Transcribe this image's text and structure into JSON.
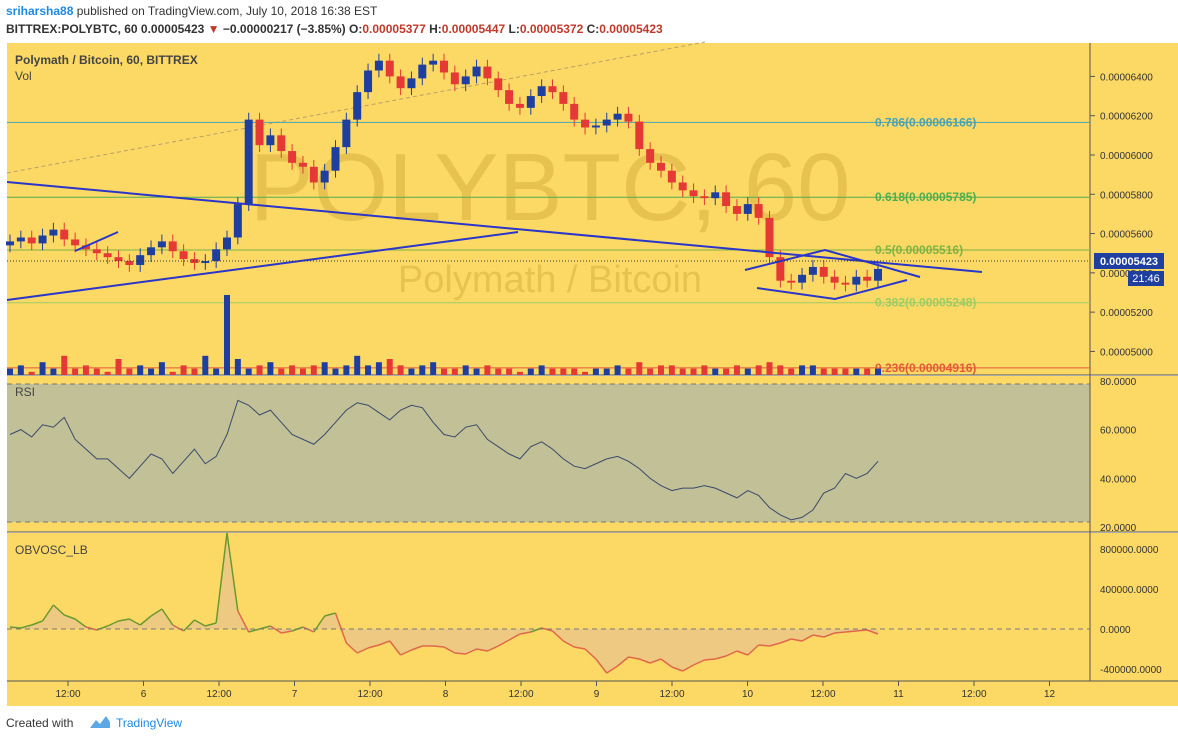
{
  "header": {
    "author": "sriharsha88",
    "published_text": "published on TradingView.com, July 10, 2018 16:38 EST",
    "symbol": "BITTREX:POLYBTC, 60",
    "last": "0.00005423",
    "change_arrow": "▼",
    "change": "−0.00000217 (−3.85%)",
    "o_label": "O:",
    "o_value": "0.00005377",
    "h_label": "H:",
    "h_value": "0.00005447",
    "l_label": "L:",
    "l_value": "0.00005372",
    "c_label": "C:",
    "c_value": "0.00005423"
  },
  "main_pane": {
    "legend_title": "Polymath / Bitcoin, 60, BITTREX",
    "legend_vol": "Vol",
    "watermark_big": "POLYBTC, 60",
    "watermark_small": "Polymath / Bitcoin",
    "price_label": "0.00005423",
    "time_label": "21:46",
    "y_ticks": [
      "0.00006400",
      "0.00006200",
      "0.00006000",
      "0.00005800",
      "0.00005600",
      "0.00005400",
      "0.00005200",
      "0.00005000"
    ],
    "fib_levels": [
      {
        "label": "0.786(0.00006166)",
        "color": "#4aa3b5"
      },
      {
        "label": "0.618(0.00005785)",
        "color": "#4caf50"
      },
      {
        "label": "0.5(0.00005516)",
        "color": "#7cb342"
      },
      {
        "label": "0.382(0.00005248)",
        "color": "#9ccc65"
      },
      {
        "label": "0.236(0.00004916)",
        "color": "#e05a3a"
      }
    ]
  },
  "rsi_pane": {
    "label": "RSI",
    "y_ticks": [
      "80.0000",
      "60.0000",
      "40.0000",
      "20.0000"
    ]
  },
  "obv_pane": {
    "label": "OBVOSC_LB",
    "y_ticks": [
      "800000.0000",
      "400000.0000",
      "0.0000",
      "-400000.0000"
    ]
  },
  "x_axis": {
    "ticks": [
      "12:00",
      "6",
      "12:00",
      "7",
      "12:00",
      "8",
      "12:00",
      "9",
      "12:00",
      "10",
      "12:00",
      "11",
      "12:00",
      "12"
    ]
  },
  "colors": {
    "background": "#fcd965",
    "bull": "#1f3fa0",
    "bear": "#e53935",
    "trendline": "#2a35c9",
    "rsi_band": "#c2c096",
    "rsi_line": "#3a4a6b",
    "obv_pos": "#6a9a2e",
    "obv_neg": "#e0674a"
  },
  "chart_data": {
    "type": "candlestick",
    "close_series": [
      55.6,
      55.8,
      55.5,
      55.9,
      56.2,
      55.7,
      55.4,
      55.2,
      55.0,
      54.8,
      54.6,
      54.4,
      54.9,
      55.3,
      55.6,
      55.1,
      54.7,
      54.5,
      54.6,
      55.2,
      55.8,
      57.5,
      61.8,
      60.5,
      61.0,
      60.2,
      59.6,
      59.4,
      58.6,
      59.2,
      60.4,
      61.8,
      63.2,
      64.3,
      64.8,
      64.0,
      63.4,
      63.9,
      64.6,
      64.8,
      64.2,
      63.6,
      64.0,
      64.5,
      63.9,
      63.3,
      62.6,
      62.4,
      63.0,
      63.5,
      63.2,
      62.6,
      61.8,
      61.4,
      61.5,
      61.8,
      62.1,
      61.7,
      60.3,
      59.6,
      59.2,
      58.6,
      58.2,
      57.9,
      57.8,
      58.1,
      57.4,
      57.0,
      57.5,
      56.8,
      54.8,
      53.6,
      53.5,
      53.9,
      54.3,
      53.8,
      53.5,
      53.4,
      53.8,
      53.6,
      54.2
    ],
    "volume_series": [
      2,
      3,
      1,
      4,
      2,
      6,
      2,
      3,
      2,
      1,
      5,
      2,
      3,
      2,
      4,
      1,
      3,
      2,
      6,
      2,
      25,
      5,
      2,
      3,
      4,
      2,
      3,
      2,
      3,
      4,
      2,
      3,
      6,
      3,
      4,
      5,
      3,
      2,
      3,
      4,
      2,
      2,
      3,
      2,
      3,
      2,
      2,
      1,
      2,
      3,
      2,
      2,
      2,
      1,
      2,
      2,
      3,
      2,
      4,
      2,
      3,
      3,
      2,
      2,
      3,
      2,
      2,
      3,
      2,
      3,
      4,
      3,
      2,
      3,
      3,
      2,
      2,
      2,
      2,
      2,
      2
    ],
    "rsi_series": [
      58,
      60,
      57,
      62,
      61,
      65,
      56,
      52,
      48,
      48,
      44,
      40,
      45,
      50,
      48,
      42,
      47,
      52,
      46,
      49,
      58,
      72,
      70,
      66,
      68,
      63,
      58,
      56,
      54,
      58,
      63,
      68,
      71,
      70,
      67,
      64,
      68,
      70,
      69,
      63,
      58,
      57,
      61,
      62,
      56,
      53,
      50,
      48,
      53,
      55,
      52,
      48,
      45,
      44,
      46,
      48,
      49,
      47,
      44,
      40,
      37,
      35,
      36,
      36,
      37,
      36,
      34,
      32,
      35,
      33,
      28,
      25,
      23,
      24,
      27,
      34,
      36,
      42,
      40,
      42,
      47
    ],
    "obv_series": [
      20000,
      10000,
      40000,
      80000,
      240000,
      140000,
      100000,
      20000,
      -10000,
      30000,
      80000,
      100000,
      40000,
      130000,
      200000,
      40000,
      -20000,
      90000,
      30000,
      60000,
      960000,
      180000,
      -30000,
      0,
      30000,
      -40000,
      -20000,
      20000,
      -30000,
      130000,
      160000,
      -140000,
      -240000,
      -190000,
      -160000,
      -120000,
      -260000,
      -210000,
      -170000,
      -170000,
      -180000,
      -240000,
      -250000,
      -200000,
      -220000,
      -170000,
      -110000,
      -50000,
      -30000,
      10000,
      -20000,
      -120000,
      -180000,
      -200000,
      -300000,
      -440000,
      -370000,
      -280000,
      -300000,
      -340000,
      -300000,
      -380000,
      -420000,
      -360000,
      -310000,
      -300000,
      -270000,
      -220000,
      -260000,
      -160000,
      -170000,
      -140000,
      -100000,
      -120000,
      -60000,
      -80000,
      -40000,
      -30000,
      -20000,
      -10000,
      -50000
    ],
    "y_range": [
      4.88e-05,
      6.57e-05
    ],
    "rsi_range": [
      18,
      82
    ],
    "obv_range": [
      -520000,
      960000
    ]
  }
}
